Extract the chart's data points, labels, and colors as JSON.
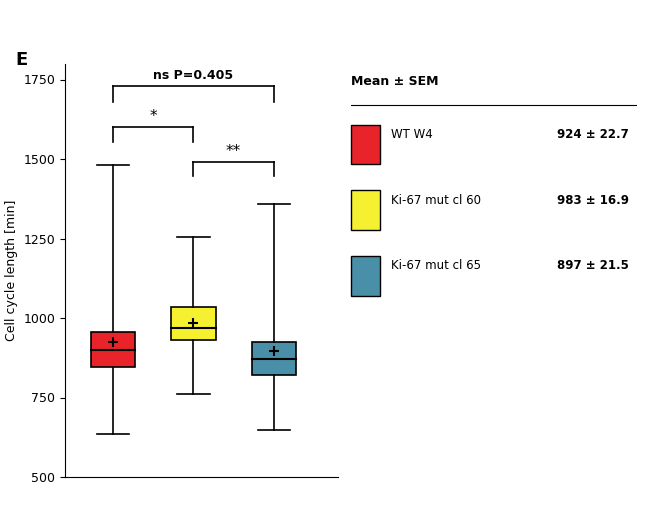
{
  "title": "E",
  "ylabel": "Cell cycle length [min]",
  "ylim": [
    500,
    1800
  ],
  "yticks": [
    500,
    750,
    1000,
    1250,
    1500,
    1750
  ],
  "ns_text": "ns P=0.405",
  "sig1": "*",
  "sig2": "**",
  "legend_title": "Mean ± SEM",
  "legend_entries": [
    {
      "label": "WT W4",
      "color": "#e8232a",
      "mean": "924 ± 22.7"
    },
    {
      "label": "Ki-67 mut cl 60",
      "color": "#f5f030",
      "mean": "983 ± 16.9"
    },
    {
      "label": "Ki-67 mut cl 65",
      "color": "#4a8fa8",
      "mean": "897 ± 21.5"
    }
  ],
  "boxes": [
    {
      "color": "#e8232a",
      "median": 900,
      "q1": 845,
      "q3": 955,
      "whisker_low": 635,
      "whisker_high": 1480,
      "mean": 924
    },
    {
      "color": "#f5f030",
      "median": 970,
      "q1": 930,
      "q3": 1035,
      "whisker_low": 760,
      "whisker_high": 1255,
      "mean": 983
    },
    {
      "color": "#4a8fa8",
      "median": 870,
      "q1": 820,
      "q3": 925,
      "whisker_low": 648,
      "whisker_high": 1360,
      "mean": 897
    }
  ],
  "background_color": "#ffffff"
}
